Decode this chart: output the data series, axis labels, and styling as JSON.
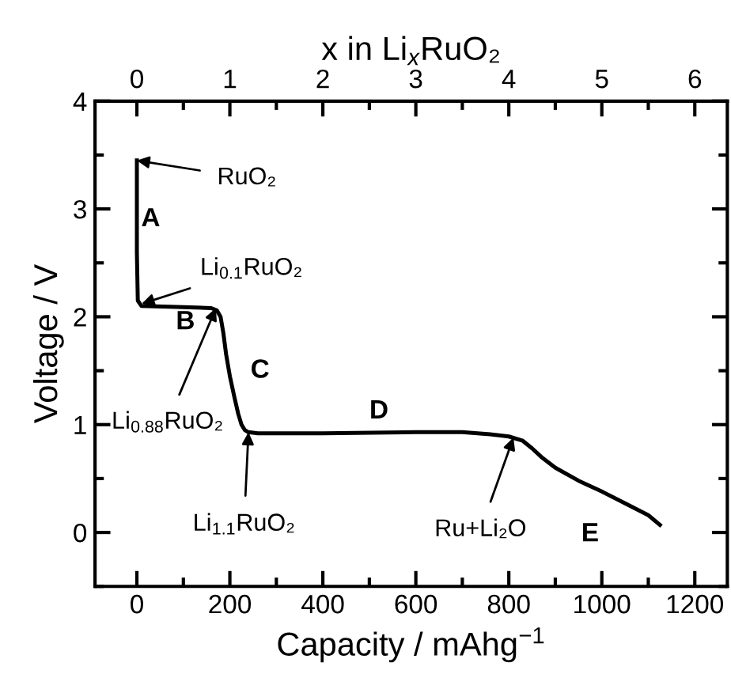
{
  "chart_data": {
    "type": "line",
    "xlabel": "Capacity / mAhg$^{−1}$",
    "ylabel": "Voltage / V",
    "x2label": "x in Li$_{x}$RuO₂",
    "xlim": [
      -90,
      1270
    ],
    "xticks": [
      0,
      200,
      400,
      600,
      800,
      1000,
      1200
    ],
    "ylim": [
      -0.5,
      4
    ],
    "yticks": [
      0,
      1,
      2,
      3,
      4
    ],
    "x2lim": [
      -0.45,
      6.35
    ],
    "x2ticks": [
      0,
      1,
      2,
      3,
      4,
      5,
      6
    ],
    "grid": false,
    "legend": false,
    "marker": "none",
    "line_style": "solid",
    "series": [
      {
        "color": "#000000",
        "x": [
          0,
          0,
          2,
          10,
          100,
          160,
          172,
          180,
          186,
          192,
          200,
          210,
          218,
          225,
          232,
          240,
          260,
          400,
          600,
          700,
          760,
          800,
          830,
          850,
          870,
          900,
          950,
          1000,
          1050,
          1100,
          1125
        ],
        "values": [
          3.45,
          2.6,
          2.15,
          2.1,
          2.09,
          2.08,
          2.06,
          2.0,
          1.85,
          1.65,
          1.45,
          1.25,
          1.1,
          1.0,
          0.95,
          0.93,
          0.92,
          0.92,
          0.93,
          0.93,
          0.91,
          0.89,
          0.85,
          0.78,
          0.7,
          0.6,
          0.48,
          0.38,
          0.27,
          0.16,
          0.07
        ]
      }
    ],
    "annotations": [
      {
        "text": "RuO₂",
        "x": 0,
        "y": 3.45
      },
      {
        "text": "Li$_{0.1}$RuO₂",
        "x": 10,
        "y": 2.12
      },
      {
        "text": "Li$_{0.88}$RuO₂",
        "x": 170,
        "y": 2.08
      },
      {
        "text": "Li$_{1.1}$RuO₂",
        "x": 240,
        "y": 0.93
      },
      {
        "text": "Ru+Li₂O",
        "x": 810,
        "y": 0.88
      },
      "A",
      "B",
      "C",
      "D",
      "E"
    ]
  }
}
